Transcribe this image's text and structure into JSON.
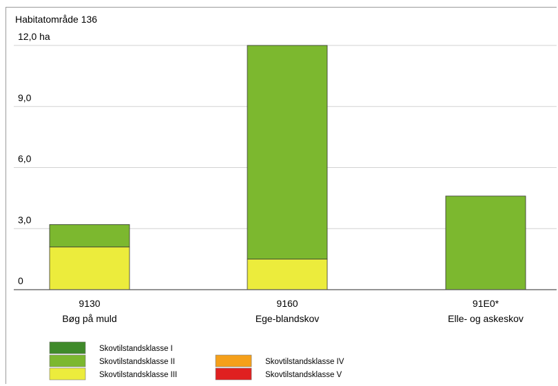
{
  "chart_data": {
    "type": "bar",
    "stacked": true,
    "title": "Habitatområde 136",
    "ylim": [
      0,
      12
    ],
    "yticks": [
      "0",
      "3,0",
      "6,0",
      "9,0",
      "12,0 ha"
    ],
    "ytick_values": [
      0,
      3,
      6,
      9,
      12
    ],
    "grid": true,
    "categories": [
      {
        "code": "9130",
        "name": "Bøg på muld"
      },
      {
        "code": "9160",
        "name": "Ege-blandskov"
      },
      {
        "code": "91E0*",
        "name": "Elle- og askeskov"
      }
    ],
    "series": [
      {
        "name": "Skovtilstandsklasse I",
        "color": "#3f8a2a",
        "values": [
          0,
          0,
          0
        ]
      },
      {
        "name": "Skovtilstandsklasse II",
        "color": "#7cb82f",
        "values": [
          1.1,
          10.5,
          4.6
        ]
      },
      {
        "name": "Skovtilstandsklasse III",
        "color": "#ecec3c",
        "values": [
          2.1,
          1.5,
          0
        ]
      },
      {
        "name": "Skovtilstandsklasse IV",
        "color": "#f5a01a",
        "values": [
          0,
          0,
          0
        ]
      },
      {
        "name": "Skovtilstandsklasse V",
        "color": "#e02020",
        "values": [
          0,
          0,
          0
        ]
      }
    ],
    "legend_position": "bottom"
  }
}
